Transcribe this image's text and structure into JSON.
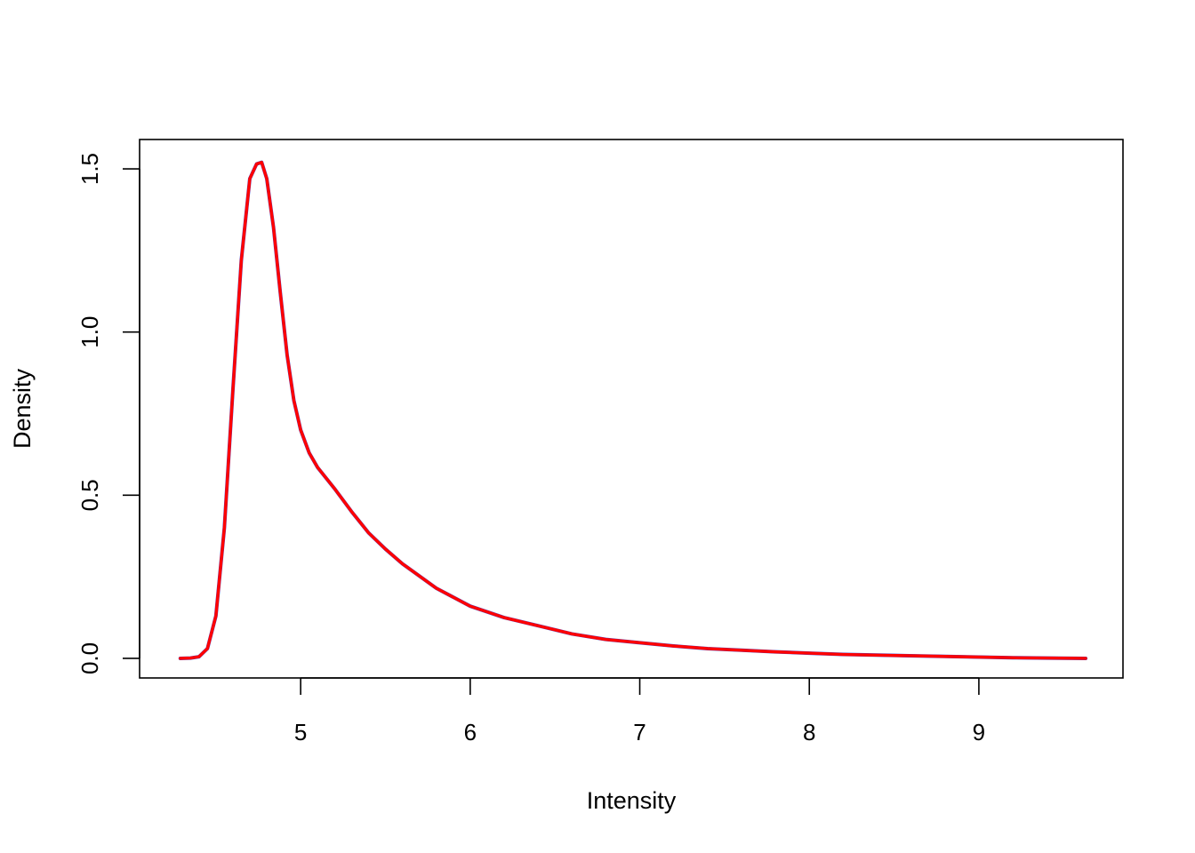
{
  "chart_data": {
    "type": "line",
    "title": "",
    "xlabel": "Intensity",
    "ylabel": "Density",
    "xlim": [
      4.05,
      9.85
    ],
    "ylim": [
      -0.06,
      1.59
    ],
    "x_ticks": [
      5,
      6,
      7,
      8,
      9
    ],
    "x_tick_labels": [
      "5",
      "6",
      "7",
      "8",
      "9"
    ],
    "y_ticks": [
      0.0,
      0.5,
      1.0,
      1.5
    ],
    "y_tick_labels": [
      "0.0",
      "0.5",
      "1.0",
      "1.5"
    ],
    "grid": false,
    "legend": "none",
    "series": [
      {
        "color": "#3f48cc",
        "x": [
          4.29,
          4.35,
          4.4,
          4.45,
          4.5,
          4.55,
          4.6,
          4.65,
          4.7,
          4.74,
          4.77,
          4.8,
          4.84,
          4.88,
          4.92,
          4.96,
          5.0,
          5.05,
          5.1,
          5.2,
          5.3,
          5.4,
          5.5,
          5.6,
          5.8,
          6.0,
          6.2,
          6.4,
          6.6,
          6.8,
          7.0,
          7.2,
          7.4,
          7.6,
          7.8,
          8.0,
          8.2,
          8.5,
          8.8,
          9.0,
          9.2,
          9.4,
          9.63
        ],
        "y": [
          0.0,
          0.001,
          0.005,
          0.03,
          0.13,
          0.4,
          0.82,
          1.22,
          1.47,
          1.515,
          1.52,
          1.47,
          1.32,
          1.12,
          0.93,
          0.79,
          0.7,
          0.63,
          0.585,
          0.52,
          0.45,
          0.385,
          0.335,
          0.29,
          0.215,
          0.16,
          0.125,
          0.1,
          0.075,
          0.058,
          0.048,
          0.038,
          0.03,
          0.025,
          0.02,
          0.016,
          0.012,
          0.009,
          0.006,
          0.004,
          0.002,
          0.001,
          0.0
        ]
      },
      {
        "color": "#ff0000",
        "x": [
          4.29,
          4.35,
          4.4,
          4.45,
          4.5,
          4.55,
          4.6,
          4.65,
          4.7,
          4.74,
          4.77,
          4.8,
          4.84,
          4.88,
          4.92,
          4.96,
          5.0,
          5.05,
          5.1,
          5.2,
          5.3,
          5.4,
          5.5,
          5.6,
          5.8,
          6.0,
          6.2,
          6.4,
          6.6,
          6.8,
          7.0,
          7.2,
          7.4,
          7.6,
          7.8,
          8.0,
          8.2,
          8.5,
          8.8,
          9.0,
          9.2,
          9.4,
          9.63
        ],
        "y": [
          0.0,
          0.001,
          0.005,
          0.03,
          0.13,
          0.4,
          0.82,
          1.22,
          1.47,
          1.515,
          1.52,
          1.47,
          1.32,
          1.12,
          0.93,
          0.79,
          0.7,
          0.63,
          0.585,
          0.52,
          0.45,
          0.385,
          0.335,
          0.29,
          0.215,
          0.16,
          0.125,
          0.1,
          0.075,
          0.058,
          0.048,
          0.038,
          0.03,
          0.025,
          0.02,
          0.016,
          0.012,
          0.009,
          0.006,
          0.004,
          0.002,
          0.001,
          0.0
        ]
      }
    ]
  }
}
